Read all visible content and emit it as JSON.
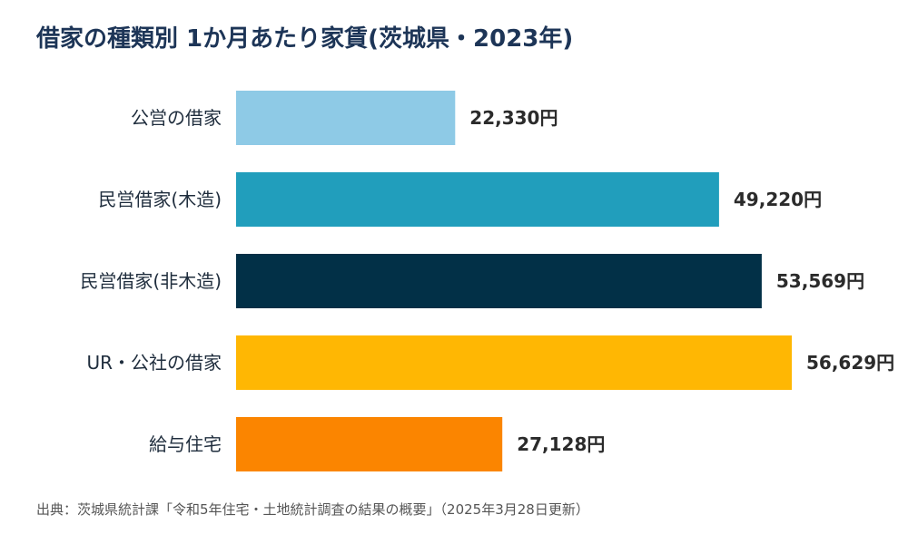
{
  "chart_data": {
    "type": "bar",
    "orientation": "horizontal",
    "title": "借家の種類別 1か月あたり家賃(茨城県・2023年)",
    "categories": [
      "公営の借家",
      "民営借家(木造)",
      "民営借家(非木造)",
      "UR・公社の借家",
      "給与住宅"
    ],
    "values": [
      22330,
      49220,
      53569,
      56629,
      27128
    ],
    "value_labels": [
      "22,330円",
      "49,220円",
      "53,569円",
      "56,629円",
      "27,128円"
    ],
    "colors": [
      "#8ecae6",
      "#219ebc",
      "#023047",
      "#ffb703",
      "#fb8500"
    ],
    "xlim": [
      0,
      58000
    ],
    "grid": false,
    "legend": "none"
  },
  "source": "出典：茨城県統計課「令和5年住宅・土地統計調査の結果の概要」（2025年3月28日更新）"
}
